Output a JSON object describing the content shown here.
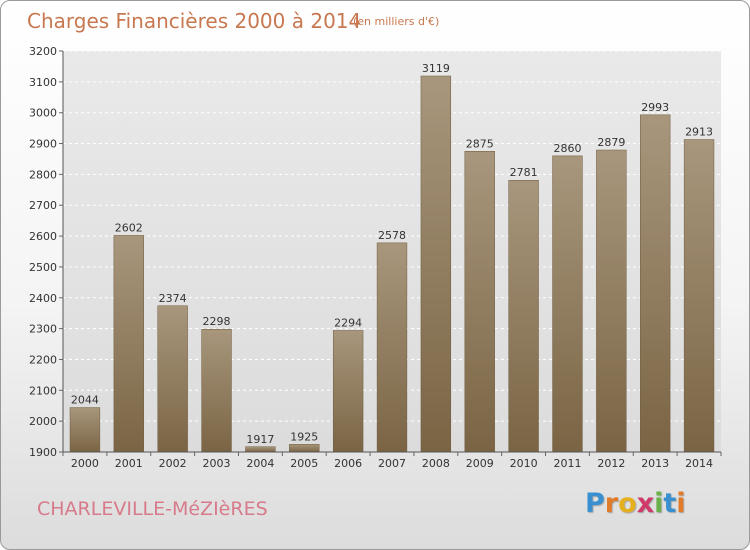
{
  "chart_data": {
    "type": "bar",
    "title": "Charges Financières 2000 à 2014",
    "subtitle": "(en milliers d'€)",
    "categories": [
      "2000",
      "2001",
      "2002",
      "2003",
      "2004",
      "2005",
      "2006",
      "2007",
      "2008",
      "2009",
      "2010",
      "2011",
      "2012",
      "2013",
      "2014"
    ],
    "values": [
      2044,
      2602,
      2374,
      2298,
      1917,
      1925,
      2294,
      2578,
      3119,
      2875,
      2781,
      2860,
      2879,
      2993,
      2913
    ],
    "ylim": [
      1900,
      3200
    ],
    "yticks": [
      1900,
      2000,
      2100,
      2200,
      2300,
      2400,
      2500,
      2600,
      2700,
      2800,
      2900,
      3000,
      3100,
      3200
    ],
    "grid": true,
    "bar_color_top": "#a8977d",
    "bar_color_bottom": "#7a6444"
  },
  "footer": {
    "city": "CHARLEVILLE-MéZIèRES",
    "logo_letters": [
      "P",
      "r",
      "o",
      "x",
      "i",
      "t",
      "i"
    ],
    "logo_colors": [
      "#3a8fd0",
      "#e07b2a",
      "#e5b020",
      "#d03a6a",
      "#6ab04c",
      "#3a8fd0",
      "#e07b2a"
    ]
  }
}
